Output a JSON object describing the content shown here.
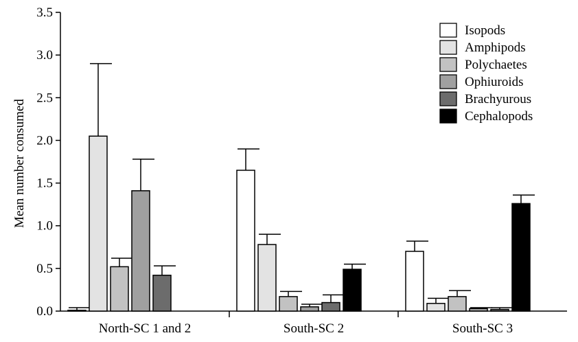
{
  "chart_data": {
    "type": "bar",
    "title": "",
    "xlabel": "",
    "ylabel": "Mean number consumed",
    "ylim": [
      0,
      3.5
    ],
    "yticks": [
      "0.0",
      "0.5",
      "1.0",
      "1.5",
      "2.0",
      "2.5",
      "3.0",
      "3.5"
    ],
    "grid": false,
    "legend_position": "top-right",
    "categories": [
      "North-SC 1 and 2",
      "South-SC 2",
      "South-SC 3"
    ],
    "series": [
      {
        "name": "Isopods",
        "color": "#ffffff",
        "values": [
          0.01,
          1.65,
          0.7
        ],
        "errors": [
          0.03,
          0.25,
          0.12
        ]
      },
      {
        "name": "Amphipods",
        "color": "#e3e3e3",
        "values": [
          2.05,
          0.78,
          0.09
        ],
        "errors": [
          0.85,
          0.12,
          0.06
        ]
      },
      {
        "name": "Polychaetes",
        "color": "#c2c2c2",
        "values": [
          0.52,
          0.17,
          0.17
        ],
        "errors": [
          0.1,
          0.06,
          0.07
        ]
      },
      {
        "name": "Ophiuroids",
        "color": "#a0a0a0",
        "values": [
          1.41,
          0.05,
          0.03
        ],
        "errors": [
          0.37,
          0.03,
          0.01
        ]
      },
      {
        "name": "Brachyurous",
        "color": "#6c6c6c",
        "values": [
          0.42,
          0.1,
          0.02
        ],
        "errors": [
          0.11,
          0.09,
          0.02
        ]
      },
      {
        "name": "Cephalopods",
        "color": "#000000",
        "values": [
          0,
          0.49,
          1.26
        ],
        "errors": [
          0,
          0.06,
          0.1
        ]
      }
    ]
  }
}
